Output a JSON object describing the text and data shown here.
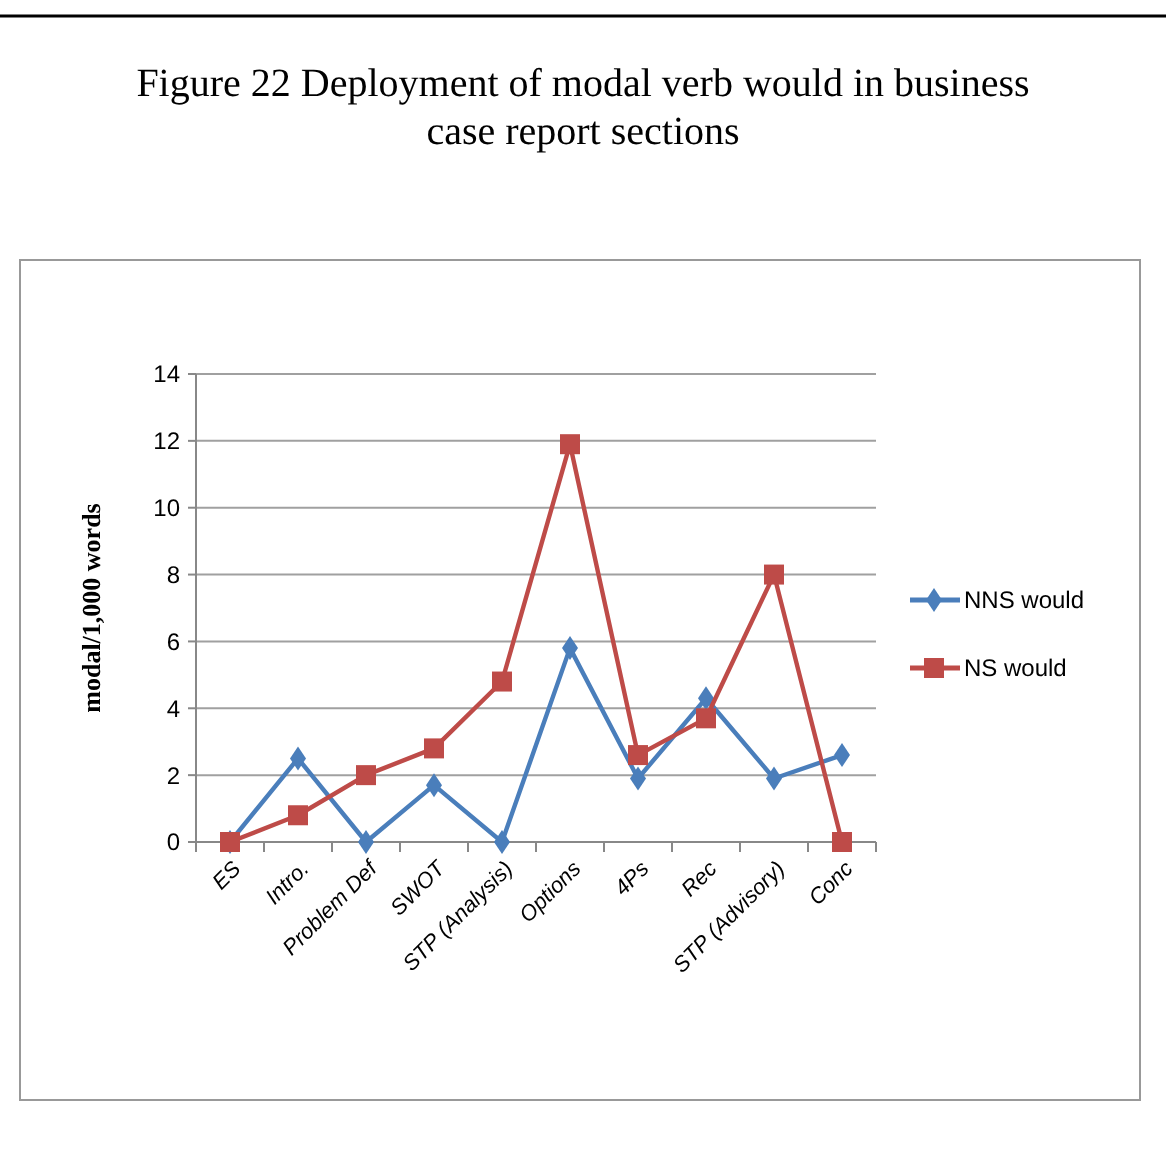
{
  "chart_data": {
    "type": "line",
    "title": "Figure 22 Deployment of modal verb would in business case report sections",
    "ylabel": "modal/1,000 words",
    "categories": [
      "ES",
      "Intro.",
      "Problem Def",
      "SWOT",
      "STP (Analysis)",
      "Options",
      "4Ps",
      "Rec",
      "STP (Advisory)",
      "Conc"
    ],
    "series": [
      {
        "name": "NNS would",
        "color": "#4a7ebb",
        "marker": "diamond",
        "values": [
          0,
          2.5,
          0,
          1.7,
          0,
          5.8,
          1.9,
          4.3,
          1.9,
          2.6
        ]
      },
      {
        "name": "NS would",
        "color": "#be4b48",
        "marker": "square",
        "values": [
          0,
          0.8,
          2,
          2.8,
          4.8,
          11.9,
          2.6,
          3.7,
          8,
          0
        ]
      }
    ],
    "ylim": [
      0,
      14
    ],
    "yticks": [
      0,
      2,
      4,
      6,
      8,
      10,
      12,
      14
    ],
    "grid": "y",
    "legend": "right"
  }
}
